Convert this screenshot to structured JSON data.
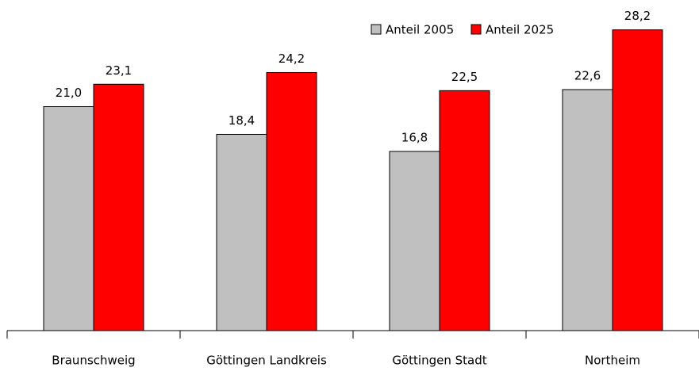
{
  "chart_data": {
    "type": "bar",
    "categories": [
      "Braunschweig",
      "Göttingen Landkreis",
      "Göttingen Stadt",
      "Northeim"
    ],
    "series": [
      {
        "name": "Anteil 2005",
        "color": "#c0c0c0",
        "values": [
          21.0,
          18.4,
          16.8,
          22.6
        ],
        "value_labels": [
          "21,0",
          "18,4",
          "16,8",
          "22,6"
        ]
      },
      {
        "name": "Anteil 2025",
        "color": "#ff0000",
        "values": [
          23.1,
          24.2,
          22.5,
          28.2
        ],
        "value_labels": [
          "23,1",
          "24,2",
          "22,5",
          "28,2"
        ]
      }
    ],
    "ylim": [
      0,
      31
    ],
    "legend": "top-right"
  }
}
